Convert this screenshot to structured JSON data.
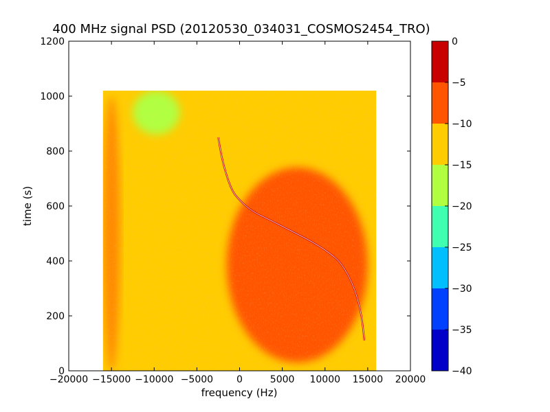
{
  "chart_data": {
    "type": "heatmap",
    "title": "400 MHz signal PSD (20120530_034031_COSMOS2454_TRO)",
    "xlabel": "frequency (Hz)",
    "ylabel": "time (s)",
    "xlim": [
      -20000,
      20000
    ],
    "ylim": [
      0,
      1200
    ],
    "xticks": [
      -20000,
      -15000,
      -10000,
      -5000,
      0,
      5000,
      10000,
      15000,
      20000
    ],
    "xtick_labels": [
      "−20000",
      "−15000",
      "−10000",
      "−5000",
      "0",
      "5000",
      "10000",
      "15000",
      "20000"
    ],
    "yticks": [
      0,
      200,
      400,
      600,
      800,
      1000,
      1200
    ],
    "ytick_labels": [
      "0",
      "200",
      "400",
      "600",
      "800",
      "1000",
      "1200"
    ],
    "data_extent": {
      "x": [
        -16000,
        16000
      ],
      "y": [
        0,
        1020
      ]
    },
    "colorbar": {
      "levels": [
        -40,
        -35,
        -30,
        -25,
        -20,
        -15,
        -10,
        -5,
        0
      ],
      "tick_labels": [
        "−40",
        "−35",
        "−30",
        "−25",
        "−20",
        "−15",
        "−10",
        "−5",
        "0"
      ],
      "colors": [
        "#0000c8",
        "#0040ff",
        "#00bfff",
        "#40ffb0",
        "#b0ff40",
        "#ffcc00",
        "#ff5500",
        "#c80000"
      ]
    },
    "regions": [
      {
        "level": "-15 to -10",
        "color": "#ffcc00",
        "x": [
          -16000,
          16000
        ],
        "y": [
          0,
          1020
        ]
      },
      {
        "level": "-20 to -15",
        "color": "#b0ff40",
        "x": [
          -12500,
          -7000
        ],
        "y": [
          860,
          1020
        ]
      },
      {
        "level": "-10 to -5",
        "color": "#ff5500",
        "x": [
          -1500,
          15000
        ],
        "y": [
          30,
          740
        ]
      },
      {
        "level": "-10 to -5",
        "color": "#ff5500",
        "x": [
          -16000,
          -14000
        ],
        "y": [
          0,
          1000
        ]
      }
    ],
    "trace": {
      "color": "#c80000",
      "points": [
        [
          -2500,
          850
        ],
        [
          -2000,
          760
        ],
        [
          -1000,
          660
        ],
        [
          0,
          620
        ],
        [
          1500,
          580
        ],
        [
          3500,
          550
        ],
        [
          6000,
          510
        ],
        [
          8500,
          470
        ],
        [
          10500,
          430
        ],
        [
          12000,
          390
        ],
        [
          13500,
          300
        ],
        [
          14300,
          200
        ],
        [
          14600,
          110
        ]
      ]
    }
  }
}
